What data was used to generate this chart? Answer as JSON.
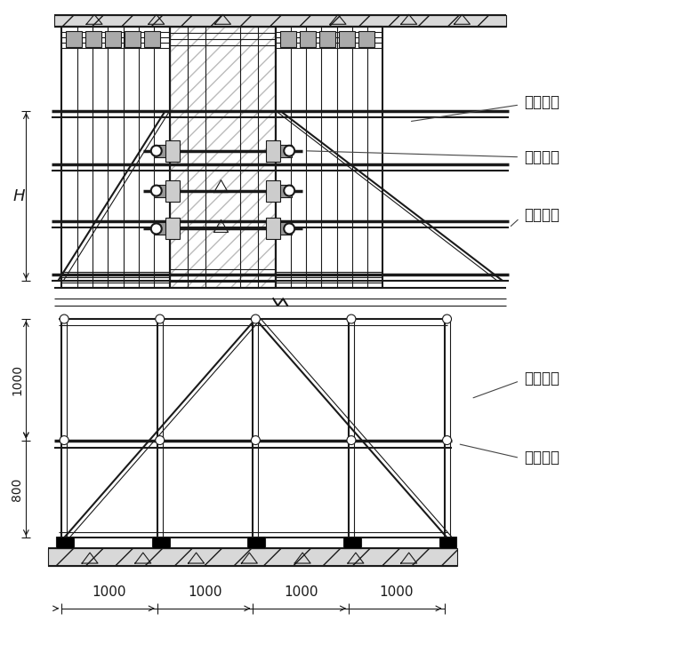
{
  "bg_color": "#ffffff",
  "lc": "#1a1a1a",
  "tlw": 2.5,
  "mlw": 1.5,
  "slw": 0.8,
  "labels": {
    "H": "H",
    "label1": "框梁斜撑",
    "label2": "对拉丝杆",
    "label3": "加固钢管",
    "label4": "加固斜撑",
    "label5": "支撑垫板",
    "dim_1000": "1000",
    "dim_800": "800",
    "bot_dims": [
      "1000",
      "1000",
      "1000",
      "1000"
    ]
  },
  "figsize": [
    7.6,
    7.44
  ],
  "dpi": 100
}
